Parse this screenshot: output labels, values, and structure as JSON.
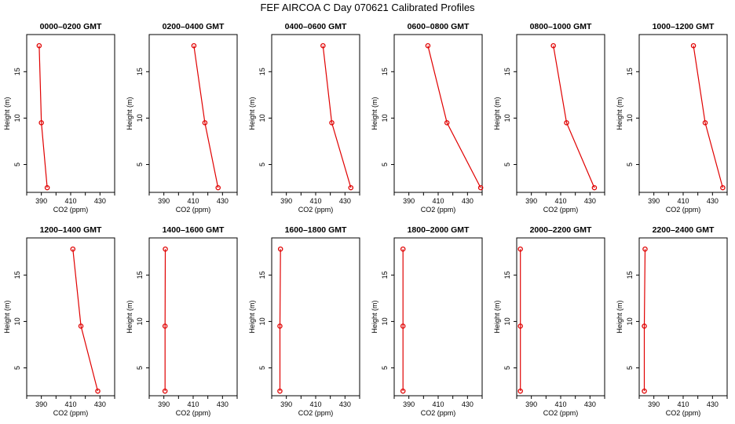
{
  "title": "FEF AIRCOA C  Day 070621  Calibrated Profiles",
  "colors": {
    "series": "#e00000",
    "axis": "#000000"
  },
  "chart_data": [
    {
      "type": "line",
      "title": "0000–0200 GMT",
      "xlabel": "CO2 (ppm)",
      "ylabel": "Height (m)",
      "xlim": [
        380,
        440
      ],
      "ylim": [
        2,
        19
      ],
      "xticks": [
        390,
        410,
        430
      ],
      "yticks": [
        5,
        10,
        15
      ],
      "grid": false,
      "points": [
        {
          "x": 388.5,
          "y": 17.8
        },
        {
          "x": 390.0,
          "y": 9.5
        },
        {
          "x": 394.0,
          "y": 2.5
        }
      ]
    },
    {
      "type": "line",
      "title": "0200–0400 GMT",
      "xlabel": "CO2 (ppm)",
      "ylabel": "Height (m)",
      "xlim": [
        380,
        440
      ],
      "ylim": [
        2,
        19
      ],
      "xticks": [
        390,
        410,
        430
      ],
      "yticks": [
        5,
        10,
        15
      ],
      "grid": false,
      "points": [
        {
          "x": 410.5,
          "y": 17.8
        },
        {
          "x": 418.0,
          "y": 9.5
        },
        {
          "x": 427.0,
          "y": 2.5
        }
      ]
    },
    {
      "type": "line",
      "title": "0400–0600 GMT",
      "xlabel": "CO2 (ppm)",
      "ylabel": "Height (m)",
      "xlim": [
        380,
        440
      ],
      "ylim": [
        2,
        19
      ],
      "xticks": [
        390,
        410,
        430
      ],
      "yticks": [
        5,
        10,
        15
      ],
      "grid": false,
      "points": [
        {
          "x": 415.0,
          "y": 17.8
        },
        {
          "x": 421.0,
          "y": 9.5
        },
        {
          "x": 434.0,
          "y": 2.5
        }
      ]
    },
    {
      "type": "line",
      "title": "0600–0800 GMT",
      "xlabel": "CO2 (ppm)",
      "ylabel": "Height (m)",
      "xlim": [
        380,
        440
      ],
      "ylim": [
        2,
        19
      ],
      "xticks": [
        390,
        410,
        430
      ],
      "yticks": [
        5,
        10,
        15
      ],
      "grid": false,
      "points": [
        {
          "x": 403.0,
          "y": 17.8
        },
        {
          "x": 416.0,
          "y": 9.5
        },
        {
          "x": 439.0,
          "y": 2.5
        }
      ]
    },
    {
      "type": "line",
      "title": "0800–1000 GMT",
      "xlabel": "CO2 (ppm)",
      "ylabel": "Height (m)",
      "xlim": [
        380,
        440
      ],
      "ylim": [
        2,
        19
      ],
      "xticks": [
        390,
        410,
        430
      ],
      "yticks": [
        5,
        10,
        15
      ],
      "grid": false,
      "points": [
        {
          "x": 405.0,
          "y": 17.8
        },
        {
          "x": 414.0,
          "y": 9.5
        },
        {
          "x": 433.0,
          "y": 2.5
        }
      ]
    },
    {
      "type": "line",
      "title": "1000–1200 GMT",
      "xlabel": "CO2 (ppm)",
      "ylabel": "Height (m)",
      "xlim": [
        380,
        440
      ],
      "ylim": [
        2,
        19
      ],
      "xticks": [
        390,
        410,
        430
      ],
      "yticks": [
        5,
        10,
        15
      ],
      "grid": false,
      "points": [
        {
          "x": 417.0,
          "y": 17.8
        },
        {
          "x": 425.0,
          "y": 9.5
        },
        {
          "x": 437.0,
          "y": 2.5
        }
      ]
    },
    {
      "type": "line",
      "title": "1200–1400 GMT",
      "xlabel": "CO2 (ppm)",
      "ylabel": "Height (m)",
      "xlim": [
        380,
        440
      ],
      "ylim": [
        2,
        19
      ],
      "xticks": [
        390,
        410,
        430
      ],
      "yticks": [
        5,
        10,
        15
      ],
      "grid": false,
      "points": [
        {
          "x": 411.5,
          "y": 17.8
        },
        {
          "x": 417.0,
          "y": 9.5
        },
        {
          "x": 428.5,
          "y": 2.5
        }
      ]
    },
    {
      "type": "line",
      "title": "1400–1600 GMT",
      "xlabel": "CO2 (ppm)",
      "ylabel": "Height (m)",
      "xlim": [
        380,
        440
      ],
      "ylim": [
        2,
        19
      ],
      "xticks": [
        390,
        410,
        430
      ],
      "yticks": [
        5,
        10,
        15
      ],
      "grid": false,
      "points": [
        {
          "x": 391.0,
          "y": 17.8
        },
        {
          "x": 390.8,
          "y": 9.5
        },
        {
          "x": 390.8,
          "y": 2.5
        }
      ]
    },
    {
      "type": "line",
      "title": "1600–1800 GMT",
      "xlabel": "CO2 (ppm)",
      "ylabel": "Height (m)",
      "xlim": [
        380,
        440
      ],
      "ylim": [
        2,
        19
      ],
      "xticks": [
        390,
        410,
        430
      ],
      "yticks": [
        5,
        10,
        15
      ],
      "grid": false,
      "points": [
        {
          "x": 386.0,
          "y": 17.8
        },
        {
          "x": 385.6,
          "y": 9.5
        },
        {
          "x": 385.6,
          "y": 2.5
        }
      ]
    },
    {
      "type": "line",
      "title": "1800–2000 GMT",
      "xlabel": "CO2 (ppm)",
      "ylabel": "Height (m)",
      "xlim": [
        380,
        440
      ],
      "ylim": [
        2,
        19
      ],
      "xticks": [
        390,
        410,
        430
      ],
      "yticks": [
        5,
        10,
        15
      ],
      "grid": false,
      "points": [
        {
          "x": 386.0,
          "y": 17.8
        },
        {
          "x": 386.0,
          "y": 9.5
        },
        {
          "x": 386.0,
          "y": 2.5
        }
      ]
    },
    {
      "type": "line",
      "title": "2000–2200 GMT",
      "xlabel": "CO2 (ppm)",
      "ylabel": "Height (m)",
      "xlim": [
        380,
        440
      ],
      "ylim": [
        2,
        19
      ],
      "xticks": [
        390,
        410,
        430
      ],
      "yticks": [
        5,
        10,
        15
      ],
      "grid": false,
      "points": [
        {
          "x": 382.5,
          "y": 17.8
        },
        {
          "x": 382.5,
          "y": 9.5
        },
        {
          "x": 382.5,
          "y": 2.5
        }
      ]
    },
    {
      "type": "line",
      "title": "2200–2400 GMT",
      "xlabel": "CO2 (ppm)",
      "ylabel": "Height (m)",
      "xlim": [
        380,
        440
      ],
      "ylim": [
        2,
        19
      ],
      "xticks": [
        390,
        410,
        430
      ],
      "yticks": [
        5,
        10,
        15
      ],
      "grid": false,
      "points": [
        {
          "x": 384.0,
          "y": 17.8
        },
        {
          "x": 383.5,
          "y": 9.5
        },
        {
          "x": 383.5,
          "y": 2.5
        }
      ]
    }
  ]
}
